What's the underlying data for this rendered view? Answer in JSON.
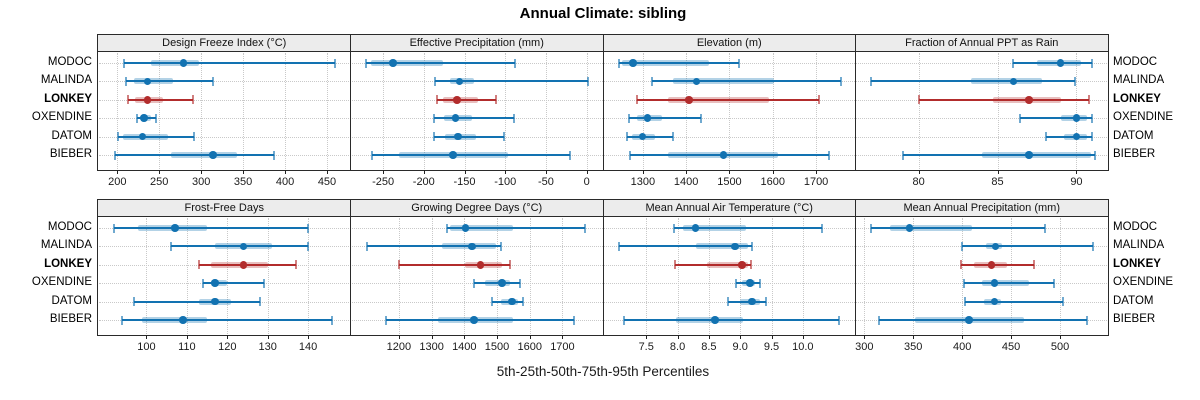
{
  "title": "Annual Climate: sibling",
  "footer": "5th-25th-50th-75th-95th Percentiles",
  "stations": [
    "MODOC",
    "MALINDA",
    "LONKEY",
    "OXENDINE",
    "DATOM",
    "BIEBER"
  ],
  "highlight_station": "LONKEY",
  "percentiles": [
    5,
    25,
    50,
    75,
    95
  ],
  "colors": {
    "blue": "#1272b1",
    "blue_band": "rgba(18,114,177,0.32)",
    "blue_cap": "rgba(18,114,177,0.60)",
    "red": "#b22c2c",
    "red_band": "rgba(178,44,44,0.30)",
    "red_cap": "rgba(178,44,44,0.60)",
    "strip_bg": "#ececec",
    "panel_border": "#2a2a2a",
    "gridline": "#c9c9c9",
    "text": "#000000"
  },
  "chart_data": {
    "type": "scatter",
    "subtype": "percentile-dotplot-trellis",
    "grid": {
      "rows": 2,
      "cols": 4
    },
    "legend_position": "none",
    "panels": [
      {
        "title": "Design Freeze Index (°C)",
        "xlim": [
          177,
          478
        ],
        "ticks": [
          200,
          250,
          300,
          350,
          400,
          450
        ],
        "tick_labels": [
          "200",
          "250",
          "300",
          "350",
          "400",
          "450"
        ],
        "series": {
          "MODOC": [
            208,
            240,
            279,
            297,
            460
          ],
          "MALINDA": [
            210,
            220,
            236,
            266,
            314
          ],
          "LONKEY": [
            213,
            221,
            236,
            254,
            290
          ],
          "OXENDINE": [
            224,
            228,
            232,
            240,
            246
          ],
          "DATOM": [
            201,
            207,
            230,
            260,
            291
          ],
          "BIEBER": [
            197,
            264,
            314,
            343,
            387
          ]
        }
      },
      {
        "title": "Effective Precipitation (mm)",
        "xlim": [
          -290,
          20
        ],
        "ticks": [
          -250,
          -200,
          -150,
          -100,
          -50,
          0
        ],
        "tick_labels": [
          "-250",
          "-200",
          "-150",
          "-100",
          "-50",
          "0"
        ],
        "series": {
          "MODOC": [
            -271,
            -265,
            -238,
            -177,
            -88
          ],
          "MALINDA": [
            -186,
            -168,
            -156,
            -138,
            2
          ],
          "LONKEY": [
            -184,
            -177,
            -159,
            -134,
            -111
          ],
          "OXENDINE": [
            -188,
            -175,
            -161,
            -141,
            -89
          ],
          "DATOM": [
            -188,
            -174,
            -158,
            -136,
            -101
          ],
          "BIEBER": [
            -264,
            -230,
            -164,
            -97,
            -20
          ]
        }
      },
      {
        "title": "Elevation (m)",
        "xlim": [
          1208,
          1791
        ],
        "ticks": [
          1300,
          1400,
          1500,
          1600,
          1700
        ],
        "tick_labels": [
          "1300",
          "1400",
          "1500",
          "1600",
          "1700"
        ],
        "series": {
          "MODOC": [
            1244,
            1253,
            1277,
            1452,
            1522
          ],
          "MALINDA": [
            1322,
            1369,
            1424,
            1604,
            1757
          ],
          "LONKEY": [
            1286,
            1357,
            1406,
            1592,
            1706
          ],
          "OXENDINE": [
            1268,
            1286,
            1311,
            1344,
            1434
          ],
          "DATOM": [
            1264,
            1275,
            1299,
            1328,
            1369
          ],
          "BIEBER": [
            1271,
            1357,
            1486,
            1611,
            1729
          ]
        }
      },
      {
        "title": "Fraction of Annual PPT as Rain",
        "xlim": [
          76,
          92
        ],
        "ticks": [
          80,
          85,
          90
        ],
        "tick_labels": [
          "80",
          "85",
          "90"
        ],
        "series": {
          "MODOC": [
            86.0,
            87.5,
            89.0,
            90.3,
            91.0
          ],
          "MALINDA": [
            77.0,
            83.3,
            86.0,
            87.8,
            89.9
          ],
          "LONKEY": [
            80.0,
            84.7,
            87.0,
            89.0,
            90.8
          ],
          "OXENDINE": [
            86.4,
            89.0,
            90.0,
            90.7,
            91.0
          ],
          "DATOM": [
            88.1,
            89.2,
            90.0,
            90.7,
            91.0
          ],
          "BIEBER": [
            79.0,
            84.0,
            87.0,
            90.9,
            91.2
          ]
        }
      },
      {
        "title": "Frost-Free Days",
        "xlim": [
          88,
          150.5
        ],
        "ticks": [
          100,
          110,
          120,
          130,
          140
        ],
        "tick_labels": [
          "100",
          "110",
          "120",
          "130",
          "140"
        ],
        "series": {
          "MODOC": [
            92,
            98,
            107,
            115,
            140
          ],
          "MALINDA": [
            106,
            117,
            124,
            131,
            140
          ],
          "LONKEY": [
            113,
            116,
            124,
            130,
            137
          ],
          "OXENDINE": [
            114,
            116,
            117,
            120,
            129
          ],
          "DATOM": [
            97,
            113,
            117,
            121,
            128
          ],
          "BIEBER": [
            94,
            99,
            109,
            115,
            146
          ]
        }
      },
      {
        "title": "Growing Degree Days (°C)",
        "xlim": [
          1052,
          1824
        ],
        "ticks": [
          1200,
          1300,
          1400,
          1500,
          1600,
          1700
        ],
        "tick_labels": [
          "1200",
          "1300",
          "1400",
          "1500",
          "1600",
          "1700"
        ],
        "series": {
          "MODOC": [
            1348,
            1356,
            1404,
            1548,
            1770
          ],
          "MALINDA": [
            1101,
            1331,
            1424,
            1498,
            1513
          ],
          "LONKEY": [
            1201,
            1402,
            1450,
            1516,
            1541
          ],
          "OXENDINE": [
            1430,
            1463,
            1515,
            1540,
            1571
          ],
          "DATOM": [
            1486,
            1513,
            1546,
            1564,
            1579
          ],
          "BIEBER": [
            1161,
            1320,
            1430,
            1549,
            1734
          ]
        }
      },
      {
        "title": "Mean Annual Air Temperature (°C)",
        "xlim": [
          6.81,
          10.84
        ],
        "ticks": [
          7.5,
          8.0,
          8.5,
          9.0,
          9.5,
          10.0
        ],
        "tick_labels": [
          "7.5",
          "8.0",
          "8.5",
          "9.0",
          "9.5",
          "10.0"
        ],
        "series": {
          "MODOC": [
            7.94,
            8.08,
            8.29,
            9.09,
            10.3
          ],
          "MALINDA": [
            7.07,
            8.3,
            8.92,
            9.12,
            9.19
          ],
          "LONKEY": [
            7.96,
            8.47,
            9.03,
            9.13,
            9.17
          ],
          "OXENDINE": [
            8.94,
            9.03,
            9.16,
            9.24,
            9.31
          ],
          "DATOM": [
            8.81,
            9.0,
            9.19,
            9.31,
            9.41
          ],
          "BIEBER": [
            7.15,
            7.98,
            8.6,
            9.05,
            10.58
          ]
        }
      },
      {
        "title": "Mean Annual Precipitation (mm)",
        "xlim": [
          291,
          549
        ],
        "ticks": [
          300,
          350,
          400,
          450,
          500
        ],
        "tick_labels": [
          "300",
          "350",
          "400",
          "450",
          "500"
        ],
        "series": {
          "MODOC": [
            307,
            326,
            346,
            410,
            485
          ],
          "MALINDA": [
            400,
            424,
            434,
            441,
            534
          ],
          "LONKEY": [
            399,
            412,
            430,
            446,
            473
          ],
          "OXENDINE": [
            402,
            420,
            433,
            468,
            494
          ],
          "DATOM": [
            403,
            422,
            433,
            440,
            503
          ],
          "BIEBER": [
            315,
            352,
            407,
            463,
            528
          ]
        }
      }
    ]
  }
}
